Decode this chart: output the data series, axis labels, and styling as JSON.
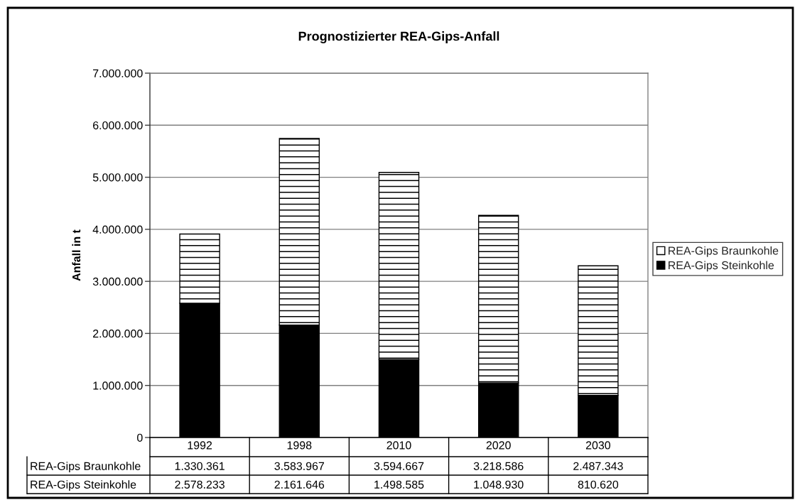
{
  "chart_data": {
    "type": "bar",
    "title": "Prognostizierter REA-Gips-Anfall",
    "ylabel": "Anfall in t",
    "categories": [
      "1992",
      "1998",
      "2010",
      "2020",
      "2030"
    ],
    "stacked": true,
    "series": [
      {
        "name": "REA-Gips Steinkohle",
        "color": "#000000",
        "values": [
          2578233,
          2161646,
          1498585,
          1048930,
          810620
        ],
        "value_labels": [
          "2.578.233",
          "2.161.646",
          "1.498.585",
          "1.048.930",
          "810.620"
        ]
      },
      {
        "name": "REA-Gips Braunkohle",
        "color": "#ffffff",
        "values": [
          1330361,
          3583967,
          3594667,
          3218586,
          2487343
        ],
        "value_labels": [
          "1.330.361",
          "3.583.967",
          "3.594.667",
          "3.218.586",
          "2.487.343"
        ]
      }
    ],
    "ylim": [
      0,
      7000000
    ],
    "yticks": [
      0,
      {
        "value": 1000000,
        "label": "1.000.000"
      },
      {
        "value": 2000000,
        "label": "2.000.000"
      },
      {
        "value": 3000000,
        "label": "3.000.000"
      },
      {
        "value": 4000000,
        "label": "4.000.000"
      },
      {
        "value": 5000000,
        "label": "5.000.000"
      },
      {
        "value": 6000000,
        "label": "6.000.000"
      },
      {
        "value": 7000000,
        "label": "7.000.000"
      }
    ],
    "grid": "y",
    "legend": "right"
  }
}
